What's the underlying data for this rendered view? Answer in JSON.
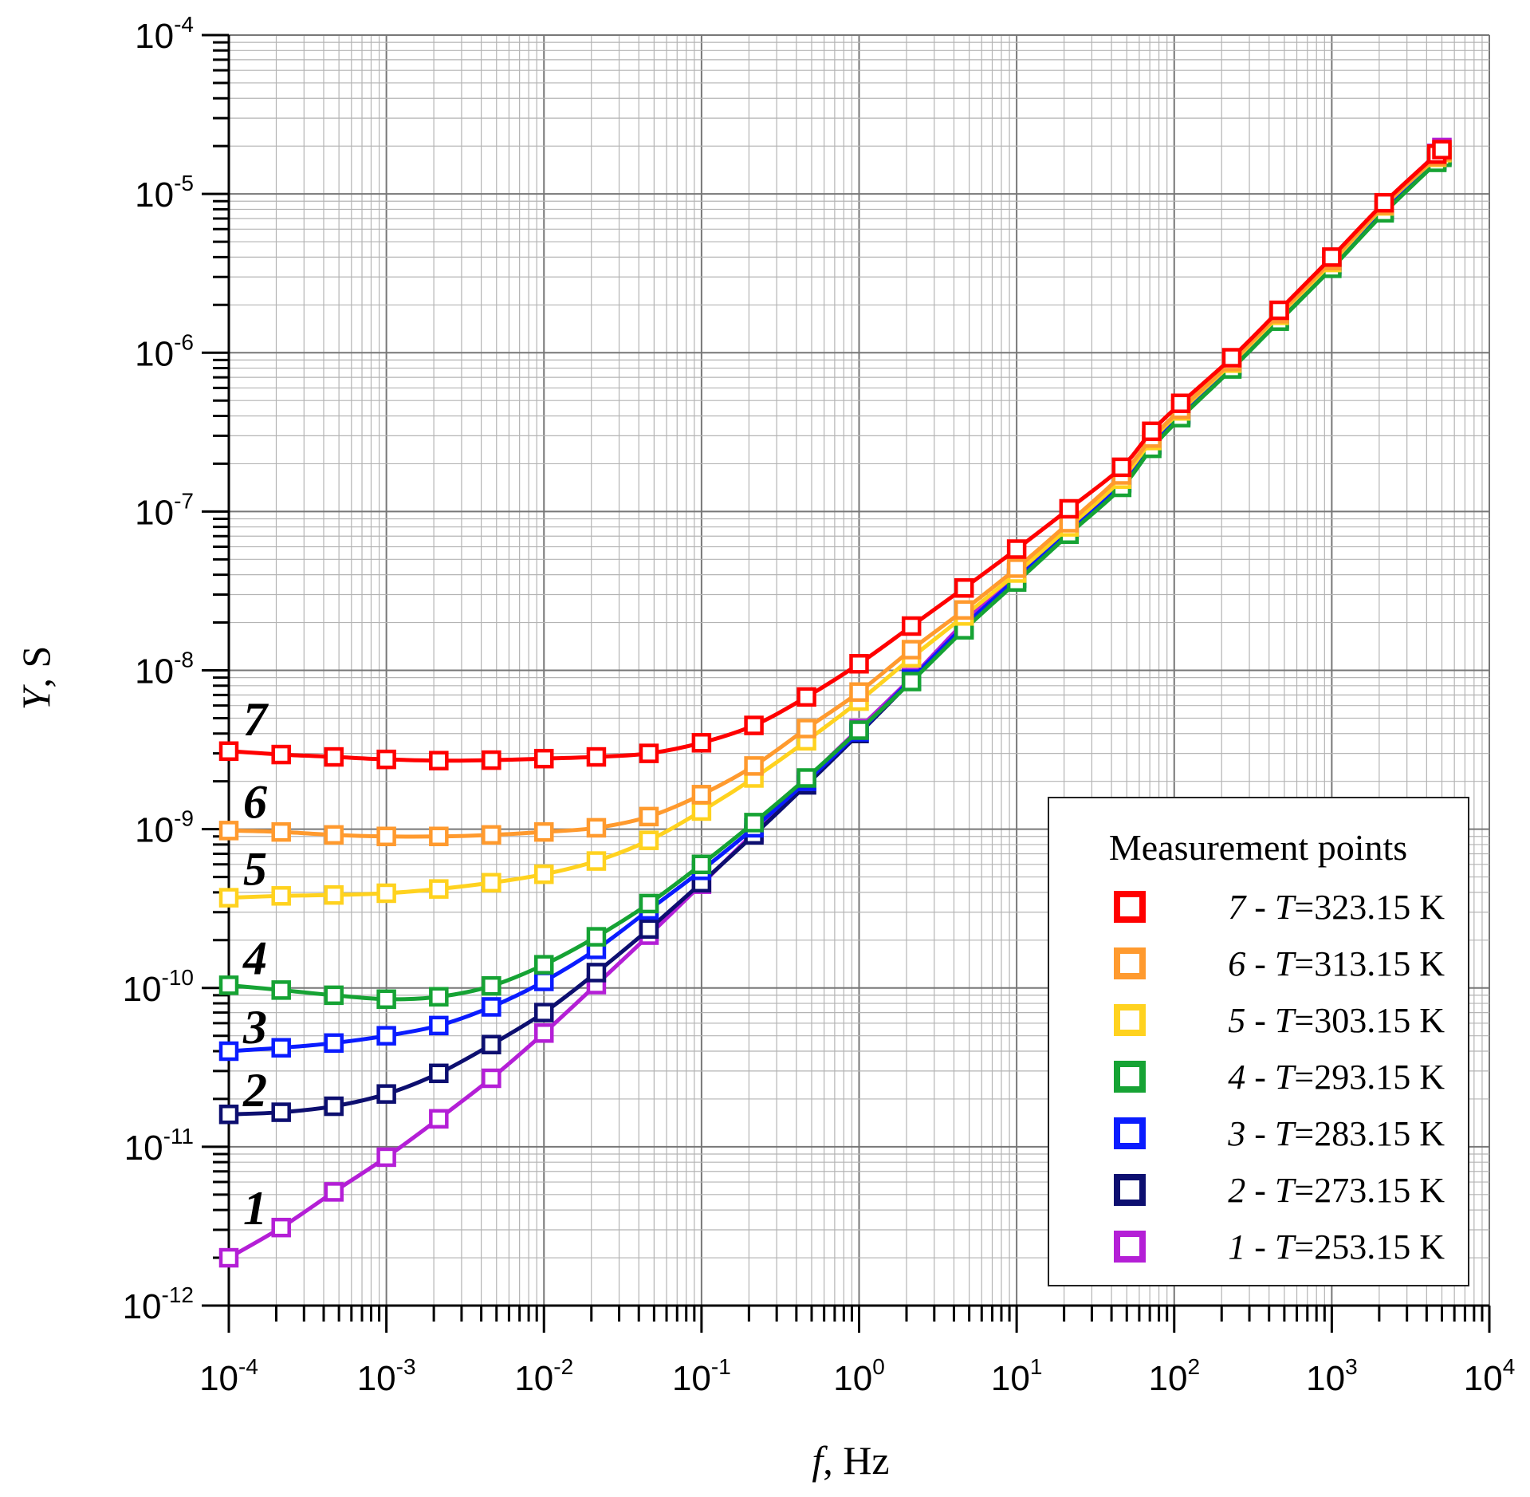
{
  "chart_data": {
    "type": "line",
    "x_scale": "log",
    "y_scale": "log",
    "xlim": [
      0.0001,
      10000
    ],
    "ylim": [
      1e-12,
      0.0001
    ],
    "grid": true,
    "legend_placement": "bottom-right",
    "legend_title": "Measurement points",
    "xlabel_italic": "f",
    "xlabel_rest": ", Hz",
    "ylabel_italic": "Y",
    "ylabel_rest": ", S",
    "x_ticks": [
      {
        "base": "10",
        "exp": "-4"
      },
      {
        "base": "10",
        "exp": "-3"
      },
      {
        "base": "10",
        "exp": "-2"
      },
      {
        "base": "10",
        "exp": "-1"
      },
      {
        "base": "10",
        "exp": "0"
      },
      {
        "base": "10",
        "exp": "1"
      },
      {
        "base": "10",
        "exp": "2"
      },
      {
        "base": "10",
        "exp": "3"
      },
      {
        "base": "10",
        "exp": "4"
      }
    ],
    "y_ticks": [
      {
        "base": "10",
        "exp": "-12"
      },
      {
        "base": "10",
        "exp": "-11"
      },
      {
        "base": "10",
        "exp": "-10"
      },
      {
        "base": "10",
        "exp": "-9"
      },
      {
        "base": "10",
        "exp": "-8"
      },
      {
        "base": "10",
        "exp": "-7"
      },
      {
        "base": "10",
        "exp": "-6"
      },
      {
        "base": "10",
        "exp": "-5"
      },
      {
        "base": "10",
        "exp": "-4"
      }
    ],
    "x": [
      0.0001,
      0.000215,
      0.000464,
      0.001,
      0.00215,
      0.00464,
      0.01,
      0.0215,
      0.0464,
      0.1,
      0.215,
      0.464,
      1,
      2.15,
      4.64,
      10,
      21.5,
      46.4,
      72,
      110,
      232,
      464,
      1000,
      2150,
      4640,
      5000
    ],
    "series": [
      {
        "label_num": "7",
        "label_T": "T",
        "label_val": "=323.15 K",
        "color": "#ff0000",
        "values": [
          3.1e-09,
          2.95e-09,
          2.85e-09,
          2.75e-09,
          2.7e-09,
          2.72e-09,
          2.78e-09,
          2.85e-09,
          3e-09,
          3.5e-09,
          4.5e-09,
          6.8e-09,
          1.1e-08,
          1.9e-08,
          3.3e-08,
          5.8e-08,
          1.04e-07,
          1.9e-07,
          3.2e-07,
          4.8e-07,
          9.3e-07,
          1.85e-06,
          4e-06,
          8.8e-06,
          1.78e-05,
          1.9e-05
        ]
      },
      {
        "label_num": "6",
        "label_T": "T",
        "label_val": "=313.15 K",
        "color": "#ff9a2e",
        "values": [
          9.8e-10,
          9.6e-10,
          9.2e-10,
          9e-10,
          9e-10,
          9.2e-10,
          9.6e-10,
          1.02e-09,
          1.2e-09,
          1.65e-09,
          2.5e-09,
          4.3e-09,
          7.3e-09,
          1.35e-08,
          2.4e-08,
          4.4e-08,
          8.5e-08,
          1.7e-07,
          2.9e-07,
          4.4e-07,
          8.8e-07,
          1.76e-06,
          3.8e-06,
          8.5e-06,
          1.72e-05,
          1.85e-05
        ]
      },
      {
        "label_num": "5",
        "label_T": "T",
        "label_val": "=303.15 K",
        "color": "#ffd21f",
        "values": [
          3.7e-10,
          3.8e-10,
          3.85e-10,
          3.95e-10,
          4.2e-10,
          4.6e-10,
          5.2e-10,
          6.3e-10,
          8.5e-10,
          1.3e-09,
          2.1e-09,
          3.6e-09,
          6.4e-09,
          1.2e-08,
          2.2e-08,
          4.1e-08,
          8e-08,
          1.6e-07,
          2.8e-07,
          4.3e-07,
          8.6e-07,
          1.72e-06,
          3.7e-06,
          8.4e-06,
          1.7e-05,
          1.82e-05
        ]
      },
      {
        "label_num": "4",
        "label_T": "T",
        "label_val": "=293.15 K",
        "color": "#16a334",
        "values": [
          1.04e-10,
          9.7e-11,
          9e-11,
          8.5e-11,
          8.8e-11,
          1.03e-10,
          1.4e-10,
          2.1e-10,
          3.4e-10,
          6e-10,
          1.1e-09,
          2.1e-09,
          4.2e-09,
          8.5e-09,
          1.8e-08,
          3.6e-08,
          7.2e-08,
          1.42e-07,
          2.5e-07,
          3.9e-07,
          7.9e-07,
          1.58e-06,
          3.4e-06,
          7.6e-06,
          1.58e-05,
          1.7e-05
        ]
      },
      {
        "label_num": "3",
        "label_T": "T",
        "label_val": "=283.15 K",
        "color": "#0a1cff",
        "values": [
          4e-11,
          4.2e-11,
          4.5e-11,
          5e-11,
          5.8e-11,
          7.6e-11,
          1.1e-10,
          1.75e-10,
          3.1e-10,
          5.5e-10,
          1.02e-09,
          2e-09,
          4.1e-09,
          8.8e-09,
          1.9e-08,
          3.8e-08,
          7.6e-08,
          1.5e-07,
          2.6e-07,
          4e-07,
          8.1e-07,
          1.62e-06,
          3.5e-06,
          7.8e-06,
          1.62e-05,
          1.74e-05
        ]
      },
      {
        "label_num": "2",
        "label_T": "T",
        "label_val": "=273.15 K",
        "color": "#0d0f70",
        "values": [
          1.6e-11,
          1.65e-11,
          1.8e-11,
          2.15e-11,
          2.9e-11,
          4.4e-11,
          7e-11,
          1.25e-10,
          2.35e-10,
          4.6e-10,
          9.2e-10,
          1.9e-09,
          4e-09,
          8.6e-09,
          1.85e-08,
          3.8e-08,
          7.7e-08,
          1.52e-07,
          2.65e-07,
          4.1e-07,
          8.3e-07,
          1.66e-06,
          3.6e-06,
          8e-06,
          1.68e-05,
          1.8e-05
        ]
      },
      {
        "label_num": "1",
        "label_T": "T",
        "label_val": "=253.15 K",
        "color": "#b41fd6",
        "values": [
          2e-12,
          3.1e-12,
          5.2e-12,
          8.6e-12,
          1.5e-11,
          2.7e-11,
          5.2e-11,
          1.05e-10,
          2.15e-10,
          4.5e-10,
          9.5e-10,
          2.05e-09,
          4.3e-09,
          9e-09,
          2e-08,
          4.1e-08,
          8.2e-08,
          1.62e-07,
          2.8e-07,
          4.3e-07,
          8.7e-07,
          1.74e-06,
          3.8e-06,
          8.6e-06,
          1.8e-05,
          1.96e-05
        ]
      }
    ]
  }
}
